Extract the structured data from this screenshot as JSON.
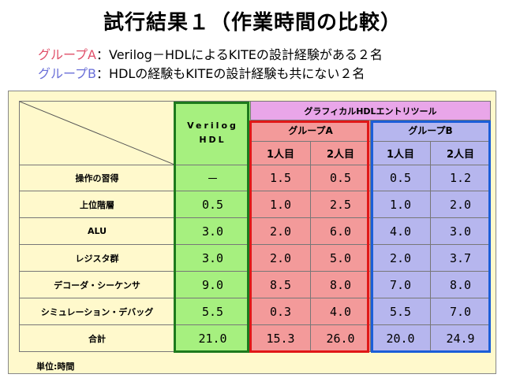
{
  "title": "試行結果１（作業時間の比較）",
  "subtitle_a": {
    "group": "グループA",
    "text": "：Verilog－HDLによるKITEの設計経験がある２名"
  },
  "subtitle_b": {
    "group": "グループB",
    "text": "：HDLの経験もKITEの設計経験も共にない２名"
  },
  "table": {
    "verilog_header_line1": "Verilog",
    "verilog_header_line2": "HDL",
    "tool_header": "グラフィカルHDLエントリツール",
    "group_a_header": "グループA",
    "group_b_header": "グループB",
    "sub_headers": [
      "1人目",
      "2人目",
      "1人目",
      "2人目"
    ],
    "rows": [
      {
        "label": "操作の習得",
        "verilog": "－",
        "a1": "1.5",
        "a2": "0.5",
        "b1": "0.5",
        "b2": "1.2"
      },
      {
        "label": "上位階層",
        "verilog": "0.5",
        "a1": "1.0",
        "a2": "2.5",
        "b1": "1.0",
        "b2": "2.0"
      },
      {
        "label": "ALU",
        "verilog": "3.0",
        "a1": "2.0",
        "a2": "6.0",
        "b1": "4.0",
        "b2": "3.0"
      },
      {
        "label": "レジスタ群",
        "verilog": "3.0",
        "a1": "2.0",
        "a2": "5.0",
        "b1": "2.0",
        "b2": "3.7"
      },
      {
        "label": "デコーダ・シーケンサ",
        "verilog": "9.0",
        "a1": "8.5",
        "a2": "8.0",
        "b1": "7.0",
        "b2": "8.0"
      },
      {
        "label": "シミュレーション・デバッグ",
        "verilog": "5.5",
        "a1": "0.3",
        "a2": "4.0",
        "b1": "5.5",
        "b2": "7.0"
      },
      {
        "label": "合計",
        "verilog": "21.0",
        "a1": "15.3",
        "a2": "26.0",
        "b1": "20.0",
        "b2": "24.9"
      }
    ]
  },
  "unit_label": "単位:時間",
  "colors": {
    "verilog_bg": "#a6f07f",
    "group_a_bg": "#f39a9a",
    "group_b_bg": "#b6b6ee",
    "tool_bg": "#e9a6e9",
    "panel_bg": "#fff9cc",
    "frame_verilog": "#1d7a1d",
    "frame_a": "#e01818",
    "frame_b": "#1b5ed8",
    "subtitle_a": "#e0506a",
    "subtitle_b": "#6b70d8"
  }
}
